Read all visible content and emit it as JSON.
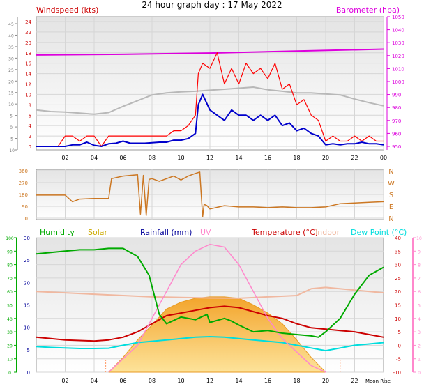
{
  "title": "24 hour graph day : 17 May 2022",
  "colors": {
    "windspeed": "#cc0000",
    "gust": "#ff0000",
    "avg_wind": "#0000cc",
    "barometer": "#dd00dd",
    "grey_line": "#b8b8b8",
    "direction": "#cc7722",
    "humidity": "#00aa00",
    "solar": "#ccaa00",
    "rainfall": "#000099",
    "uv": "#ff88cc",
    "temperature": "#cc0000",
    "indoor": "#f0b8a0",
    "dew_point": "#00dddd"
  },
  "chart_data": [
    {
      "type": "line",
      "name": "wind-panel",
      "left_title": "Windspeed (kts)",
      "right_title": "Barometer (hpa)",
      "x_ticks": [
        "02",
        "04",
        "06",
        "08",
        "10",
        "12",
        "14",
        "16",
        "18",
        "20",
        "22",
        "00"
      ],
      "y_outer_ticks": [
        "-10",
        "-5",
        "0",
        "5",
        "10",
        "15",
        "20",
        "25",
        "30",
        "35",
        "40",
        "45"
      ],
      "y_left_ticks": [
        "0",
        "2",
        "4",
        "6",
        "8",
        "10",
        "12",
        "14",
        "16",
        "18",
        "20",
        "22",
        "24"
      ],
      "y_right_ticks": [
        "950",
        "960",
        "970",
        "980",
        "990",
        "1000",
        "1010",
        "1020",
        "1030",
        "1040",
        "1050"
      ],
      "series": [
        {
          "name": "Windspeed (kts)",
          "x": [
            0,
            0.5,
            1,
            1.5,
            2,
            2.5,
            3,
            3.5,
            4,
            4.5,
            5,
            5.5,
            6,
            6.5,
            7,
            7.5,
            8,
            8.5,
            9,
            9.5,
            10,
            10.5,
            11,
            11.2,
            11.5,
            12,
            12.5,
            13,
            13.5,
            14,
            14.5,
            15,
            15.5,
            16,
            16.5,
            17,
            17.5,
            18,
            18.5,
            19,
            19.5,
            20,
            20.5,
            21,
            21.5,
            22,
            22.5,
            23,
            23.5,
            24
          ],
          "y": [
            0,
            0,
            0,
            0,
            2,
            2,
            1,
            2,
            2,
            0,
            2,
            2,
            2,
            2,
            2,
            2,
            2,
            2,
            2,
            3,
            3,
            4,
            6,
            14,
            16,
            15,
            18,
            12,
            15,
            12,
            16,
            14,
            15,
            13,
            16,
            11,
            12,
            8,
            9,
            6,
            5,
            1,
            2,
            1,
            1,
            2,
            1,
            2,
            1,
            1
          ]
        },
        {
          "name": "Average wind",
          "x": [
            0,
            0.5,
            1,
            1.5,
            2,
            2.5,
            3,
            3.5,
            4,
            4.5,
            5,
            5.5,
            6,
            6.5,
            7,
            7.5,
            8,
            8.5,
            9,
            9.5,
            10,
            10.5,
            11,
            11.2,
            11.5,
            12,
            12.5,
            13,
            13.5,
            14,
            14.5,
            15,
            15.5,
            16,
            16.5,
            17,
            17.5,
            18,
            18.5,
            19,
            19.5,
            20,
            20.5,
            21,
            21.5,
            22,
            22.5,
            23,
            23.5,
            24
          ],
          "y": [
            0,
            0,
            0,
            0,
            0,
            0.3,
            0.3,
            0.8,
            0.2,
            0,
            0.5,
            0.6,
            1,
            0.6,
            0.6,
            0.6,
            0.7,
            0.8,
            0.8,
            1.2,
            1.2,
            1.5,
            2.5,
            8,
            10,
            7,
            6,
            5,
            7,
            6,
            6,
            5,
            6,
            5,
            6,
            4,
            4.5,
            3,
            3.5,
            2.5,
            2,
            0.3,
            0.5,
            0.3,
            0.5,
            0.5,
            0.8,
            0.5,
            0.5,
            0.3
          ]
        },
        {
          "name": "Barometer (hpa)",
          "x": [
            0,
            6,
            12,
            18,
            24
          ],
          "y": [
            1020.5,
            1021,
            1022,
            1023.5,
            1025
          ]
        },
        {
          "name": "Grey line",
          "x": [
            0,
            1,
            2,
            3,
            4,
            5,
            6,
            7,
            8,
            9,
            10,
            11,
            12,
            13,
            14,
            15,
            16,
            17,
            18,
            19,
            20,
            21,
            22,
            23,
            24
          ],
          "y": [
            7,
            6.7,
            6.6,
            6.4,
            6.2,
            6.5,
            7.7,
            8.8,
            9.9,
            10.3,
            10.5,
            10.6,
            10.8,
            11,
            11.2,
            11.4,
            10.9,
            10.6,
            10.3,
            10.3,
            10.1,
            9.9,
            9.1,
            8.4,
            7.8
          ]
        }
      ]
    },
    {
      "type": "line",
      "name": "direction-panel",
      "y_left_ticks": [
        "0",
        "90",
        "180",
        "270",
        "360"
      ],
      "y_right_ticks": [
        "N",
        "E",
        "S",
        "W",
        "N"
      ],
      "series": [
        {
          "name": "Wind direction",
          "x": [
            0,
            1,
            2,
            2.5,
            3,
            4,
            5,
            5.2,
            6,
            6.5,
            7,
            7.2,
            7.4,
            7.6,
            7.8,
            8,
            8.5,
            9,
            9.5,
            10,
            10.5,
            11,
            11.3,
            11.5,
            11.6,
            11.8,
            12,
            13,
            14,
            15,
            16,
            17,
            18,
            19,
            20,
            21,
            22,
            23,
            24
          ],
          "y": [
            175,
            175,
            175,
            125,
            145,
            150,
            150,
            300,
            320,
            325,
            330,
            30,
            325,
            20,
            295,
            300,
            280,
            300,
            320,
            290,
            320,
            340,
            350,
            10,
            105,
            95,
            70,
            95,
            85,
            85,
            80,
            85,
            80,
            80,
            85,
            110,
            115,
            120,
            125
          ]
        }
      ]
    },
    {
      "type": "line",
      "name": "weather-panel",
      "legend": [
        "Humidity",
        "Solar",
        "Rainfall (mm)",
        "UV",
        "Temperature (°C)",
        "Indoor",
        "Dew Point (°C)"
      ],
      "x_ticks": [
        "02",
        "04",
        "06",
        "08",
        "10",
        "12",
        "14",
        "16",
        "18",
        "20",
        "22",
        "Moon Rise"
      ],
      "y_outer_ticks": [
        "0",
        "10",
        "20",
        "30",
        "40",
        "50",
        "60",
        "70",
        "80",
        "90",
        "100"
      ],
      "y_inner_ticks": [
        "0",
        "5",
        "10",
        "15",
        "20",
        "25",
        "30"
      ],
      "y_right_ticks": [
        "-10",
        "-5",
        "0",
        "5",
        "10",
        "15",
        "20",
        "25",
        "30",
        "35",
        "40"
      ],
      "y_far_right_ticks": [
        "0",
        "1",
        "2",
        "3",
        "4",
        "5",
        "6",
        "7",
        "8",
        "9",
        "10"
      ],
      "series": [
        {
          "name": "Humidity",
          "x": [
            0,
            1,
            2,
            3,
            4,
            5,
            6,
            7,
            7.8,
            8.5,
            9,
            10,
            11,
            11.8,
            12,
            13,
            13.5,
            14,
            15,
            16,
            17,
            18,
            19,
            19.5,
            20,
            21,
            22,
            23,
            24
          ],
          "y": [
            88,
            89,
            90,
            91,
            91,
            92,
            92,
            86,
            72,
            43,
            36,
            41,
            39,
            43,
            37,
            40,
            38,
            35,
            30,
            31,
            29,
            28,
            27,
            26,
            30,
            40,
            58,
            72,
            78
          ]
        },
        {
          "name": "Solar",
          "x": [
            5,
            6,
            7,
            8,
            9,
            10,
            11,
            12,
            13,
            14,
            15,
            16,
            17,
            18,
            19,
            20
          ],
          "y": [
            0,
            11,
            24,
            35,
            47,
            52,
            55,
            56,
            56,
            55,
            50,
            44,
            36,
            24,
            11,
            0
          ]
        },
        {
          "name": "UV",
          "x": [
            5,
            6,
            7,
            8,
            9,
            10,
            11,
            12,
            13,
            14,
            15,
            16,
            17,
            18,
            19,
            20
          ],
          "y": [
            0,
            1,
            2,
            4,
            6,
            8,
            9,
            9.5,
            9.3,
            8,
            6,
            4,
            2.5,
            1.5,
            0.5,
            0
          ]
        },
        {
          "name": "Temperature (°C)",
          "x": [
            0,
            1,
            2,
            3,
            4,
            5,
            6,
            7,
            8,
            9,
            10,
            11,
            12,
            13,
            14,
            15,
            16,
            17,
            18,
            19,
            20,
            21,
            22,
            23,
            24
          ],
          "y": [
            3,
            2.5,
            2,
            1.8,
            1.6,
            2,
            3,
            5,
            8,
            11,
            12,
            13,
            14,
            14.5,
            14,
            12.5,
            11,
            10,
            8,
            6.5,
            6,
            5.5,
            5,
            4,
            3
          ]
        },
        {
          "name": "Indoor",
          "x": [
            0,
            2,
            4,
            6,
            8,
            10,
            12,
            14,
            16,
            18,
            19,
            20,
            22,
            24
          ],
          "y": [
            20,
            19.5,
            19,
            18.5,
            18,
            17.8,
            17.6,
            17.5,
            18,
            18.5,
            21,
            21.5,
            20.5,
            19.5
          ]
        },
        {
          "name": "Dew Point (°C)",
          "x": [
            0,
            1,
            2,
            3,
            4,
            5,
            6,
            7,
            8,
            9,
            10,
            11,
            12,
            13,
            14,
            15,
            16,
            17,
            18,
            19,
            20,
            21,
            22,
            23,
            24
          ],
          "y": [
            -0.5,
            -0.8,
            -1,
            -1.2,
            -1.2,
            -1.1,
            0,
            1,
            1.5,
            2,
            2.5,
            3,
            3.2,
            3,
            2.5,
            2,
            1.5,
            1,
            0,
            -1,
            -2,
            -1,
            0,
            0.5,
            1
          ]
        }
      ]
    }
  ]
}
